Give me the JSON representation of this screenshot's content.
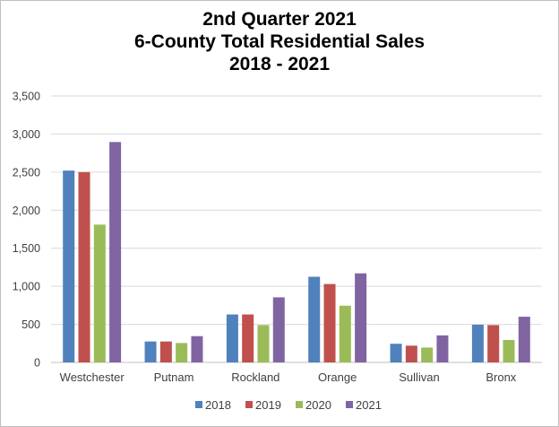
{
  "chart_data": {
    "type": "bar",
    "title": [
      "2nd Quarter 2021",
      "6-County Total Residential Sales",
      "2018 - 2021"
    ],
    "xlabel": "",
    "ylabel": "",
    "categories": [
      "Westchester",
      "Putnam",
      "Rockland",
      "Orange",
      "Sullivan",
      "Bronx"
    ],
    "ylim": [
      0,
      3500
    ],
    "yticks": [
      "0",
      "500",
      "1,000",
      "1,500",
      "2,000",
      "2,500",
      "3,000",
      "3,500"
    ],
    "ytick_values": [
      0,
      500,
      1000,
      1500,
      2000,
      2500,
      3000,
      3500
    ],
    "grid": true,
    "legend_position": "bottom",
    "series": [
      {
        "name": "2018",
        "color": "#4f81bd",
        "values": [
          2520,
          275,
          630,
          1125,
          245,
          495
        ]
      },
      {
        "name": "2019",
        "color": "#c0504d",
        "values": [
          2500,
          275,
          630,
          1030,
          220,
          490
        ]
      },
      {
        "name": "2020",
        "color": "#9bbb59",
        "values": [
          1810,
          255,
          490,
          745,
          195,
          295
        ]
      },
      {
        "name": "2021",
        "color": "#8064a2",
        "values": [
          2895,
          345,
          855,
          1170,
          355,
          600
        ]
      }
    ]
  }
}
